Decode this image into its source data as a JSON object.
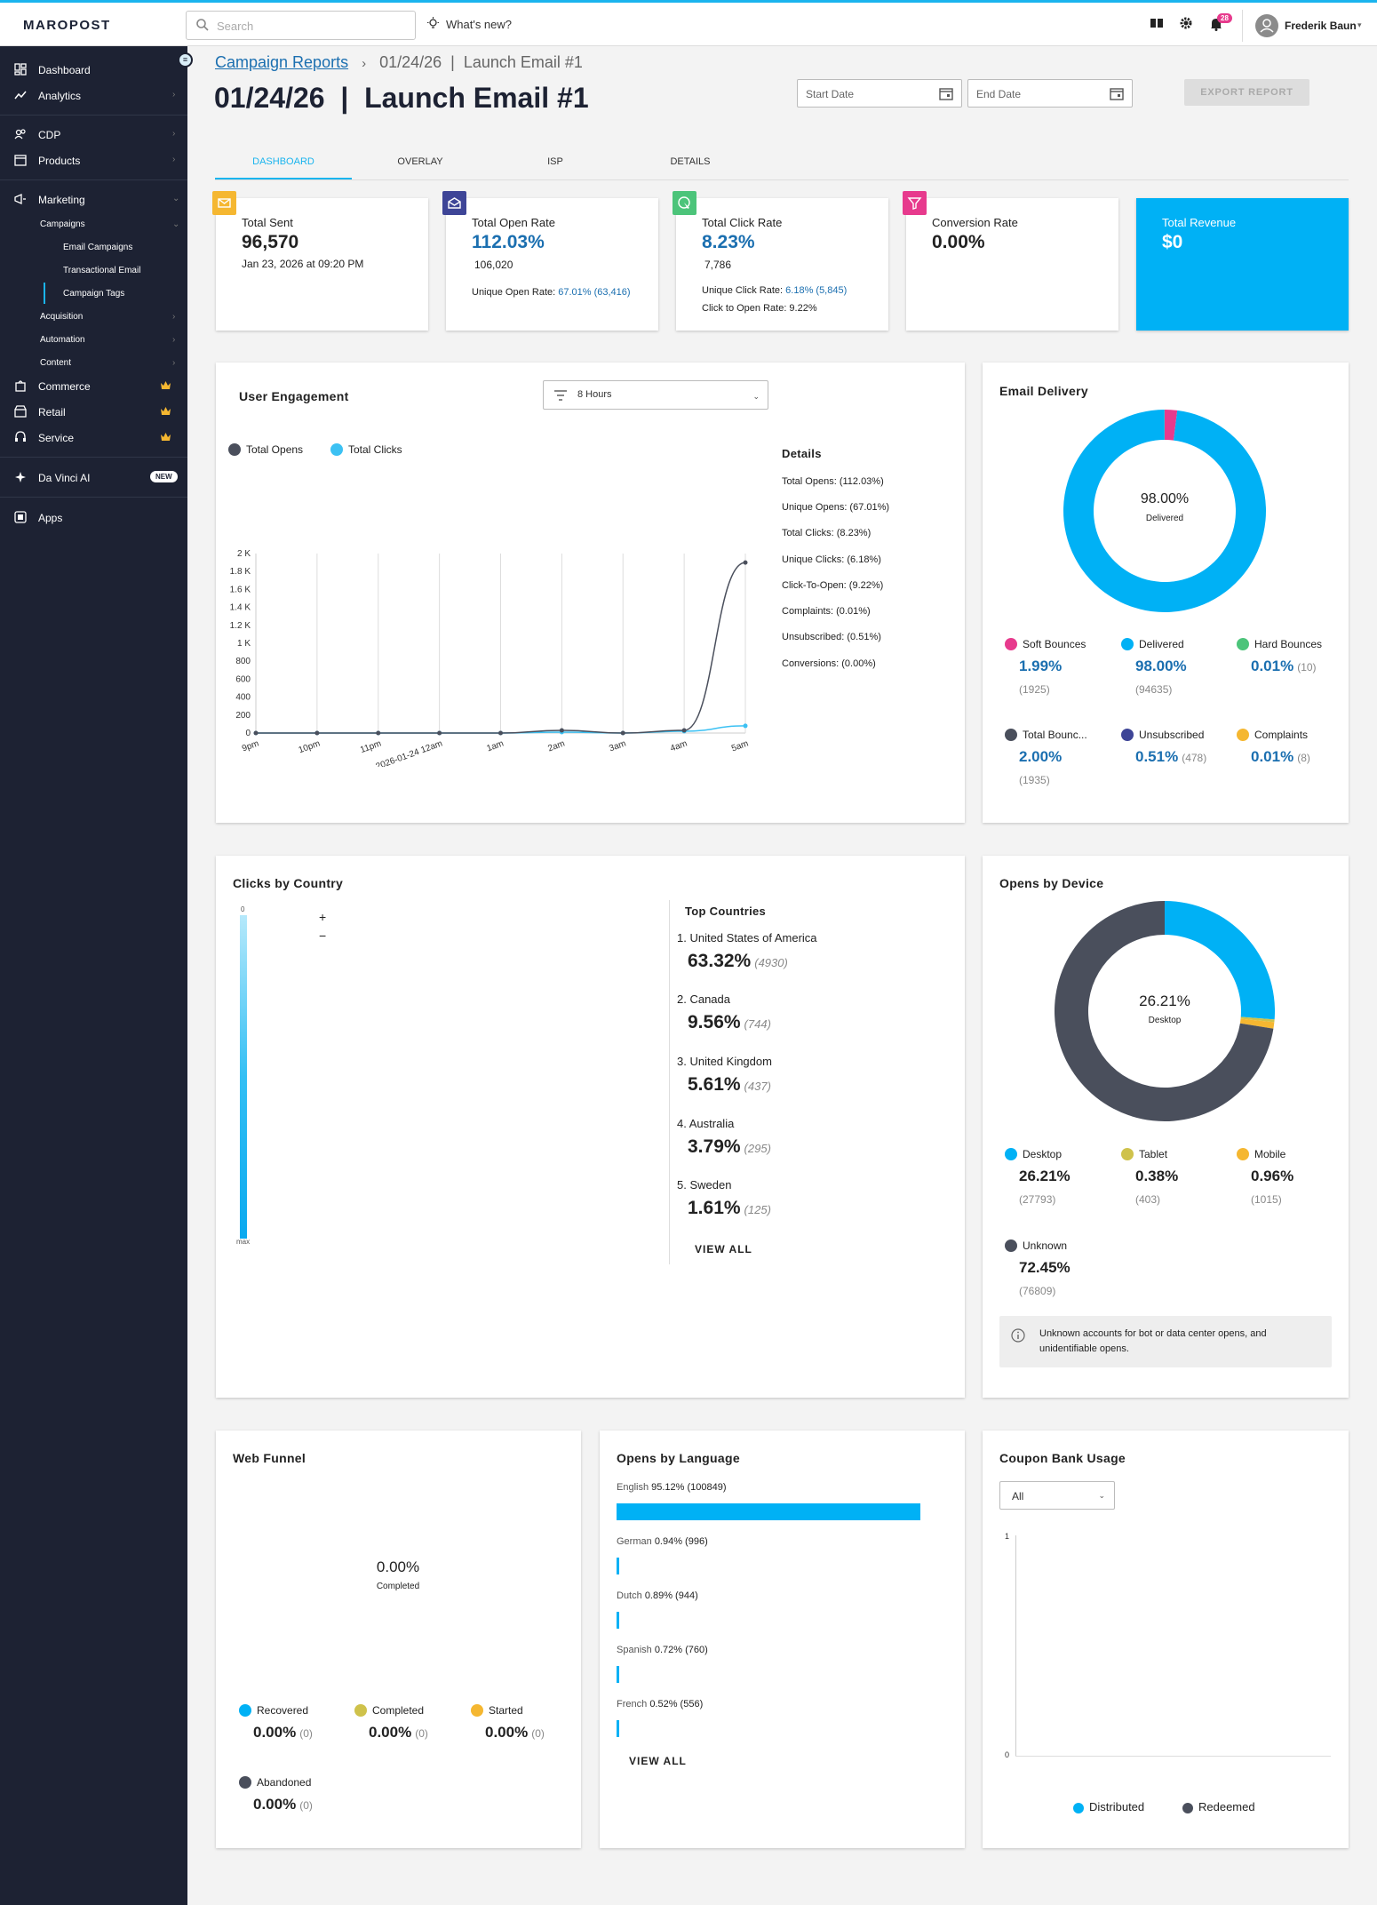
{
  "app": {
    "logo": "MAROPOST",
    "search_placeholder": "Search",
    "whats_new": "What's new?",
    "notif_count": "28",
    "user_name": "Frederik Baun"
  },
  "sidebar": {
    "toggle": "≡",
    "items": [
      {
        "label": "Dashboard"
      },
      {
        "label": "Analytics"
      },
      {
        "label": "CDP"
      },
      {
        "label": "Products"
      },
      {
        "label": "Marketing"
      },
      {
        "label": "Campaigns"
      },
      {
        "label": "Email Campaigns"
      },
      {
        "label": "Transactional Email"
      },
      {
        "label": "Campaign Tags"
      },
      {
        "label": "Acquisition"
      },
      {
        "label": "Automation"
      },
      {
        "label": "Content"
      },
      {
        "label": "Commerce"
      },
      {
        "label": "Retail"
      },
      {
        "label": "Service"
      },
      {
        "label": "Da Vinci AI"
      },
      {
        "label": "Apps"
      }
    ],
    "new_badge": "NEW"
  },
  "breadcrumb": {
    "root": "Campaign Reports",
    "sep": "›",
    "current": "01/24/26  |  Launch Email #1"
  },
  "page_title": "01/24/26  |  Launch Email #1",
  "dates": {
    "start_placeholder": "Start Date",
    "end_placeholder": "End Date"
  },
  "export_label": "EXPORT REPORT",
  "tabs": [
    {
      "label": "DASHBOARD"
    },
    {
      "label": "OVERLAY"
    },
    {
      "label": "ISP"
    },
    {
      "label": "DETAILS"
    }
  ],
  "kpis": {
    "sent": {
      "label": "Total Sent",
      "value": "96,570",
      "sub": "Jan 23, 2026 at 09:20 PM"
    },
    "open": {
      "label": "Total Open Rate",
      "value": "112.03%",
      "sub": "106,020",
      "note_label": "Unique Open Rate:",
      "note_value": "67.01% (63,416)"
    },
    "click": {
      "label": "Total Click Rate",
      "value": "8.23%",
      "sub": "7,786",
      "note_label": "Unique Click Rate:",
      "note_value": "6.18% (5,845)",
      "note2": "Click to Open Rate: 9.22%"
    },
    "conv": {
      "label": "Conversion Rate",
      "value": "0.00%"
    },
    "revenue": {
      "label": "Total Revenue",
      "value": "$0"
    }
  },
  "engagement": {
    "title": "User Engagement",
    "range": "8 Hours",
    "legend": [
      "Total Opens",
      "Total Clicks"
    ],
    "details_title": "Details",
    "details": [
      "Total Opens: (112.03%)",
      "Unique Opens: (67.01%)",
      "Total Clicks: (8.23%)",
      "Unique Clicks: (6.18%)",
      "Click-To-Open: (9.22%)",
      "Complaints: (0.01%)",
      "Unsubscribed: (0.51%)",
      "Conversions: (0.00%)"
    ]
  },
  "delivery": {
    "title": "Email Delivery",
    "center_value": "98.00%",
    "center_label": "Delivered",
    "stats": [
      {
        "label": "Soft Bounces",
        "value": "1.99%",
        "count": "(1925)",
        "color": "#e73a8d"
      },
      {
        "label": "Delivered",
        "value": "98.00%",
        "count": "(94635)",
        "color": "#00b1f5"
      },
      {
        "label": "Hard Bounces",
        "value": "0.01%",
        "count": "(10)",
        "color": "#4cc47a"
      },
      {
        "label": "Total Bounc...",
        "value": "2.00%",
        "count": "(1935)",
        "color": "#4a4f5c"
      },
      {
        "label": "Unsubscribed",
        "value": "0.51%",
        "count": "(478)",
        "color": "#3e4597"
      },
      {
        "label": "Complaints",
        "value": "0.01%",
        "count": "(8)",
        "color": "#f5b731"
      }
    ]
  },
  "country": {
    "title": "Clicks by Country",
    "scale_min": "0",
    "scale_max": "max",
    "zoom_in": "+",
    "zoom_out": "−",
    "top_title": "Top Countries",
    "top": [
      {
        "name": "1. United States of America",
        "pct": "63.32%",
        "count": "(4930)"
      },
      {
        "name": "2. Canada",
        "pct": "9.56%",
        "count": "(744)"
      },
      {
        "name": "3. United Kingdom",
        "pct": "5.61%",
        "count": "(437)"
      },
      {
        "name": "4. Australia",
        "pct": "3.79%",
        "count": "(295)"
      },
      {
        "name": "5. Sweden",
        "pct": "1.61%",
        "count": "(125)"
      }
    ],
    "view_all": "VIEW ALL"
  },
  "device": {
    "title": "Opens by Device",
    "center_value": "26.21%",
    "center_label": "Desktop",
    "stats": [
      {
        "label": "Desktop",
        "value": "26.21%",
        "count": "(27793)",
        "color": "#00b1f5"
      },
      {
        "label": "Tablet",
        "value": "0.38%",
        "count": "(403)",
        "color": "#cfc24b"
      },
      {
        "label": "Mobile",
        "value": "0.96%",
        "count": "(1015)",
        "color": "#f5b731"
      },
      {
        "label": "Unknown",
        "value": "72.45%",
        "count": "(76809)",
        "color": "#4a4f5c"
      }
    ],
    "info": "Unknown accounts for bot or data center opens, and unidentifiable opens."
  },
  "funnel": {
    "title": "Web Funnel",
    "center_value": "0.00%",
    "center_label": "Completed",
    "stats": [
      {
        "label": "Recovered",
        "value": "0.00%",
        "count": "(0)",
        "color": "#00b1f5"
      },
      {
        "label": "Completed",
        "value": "0.00%",
        "count": "(0)",
        "color": "#cfc24b"
      },
      {
        "label": "Started",
        "value": "0.00%",
        "count": "(0)",
        "color": "#f5b731"
      },
      {
        "label": "Abandoned",
        "value": "0.00%",
        "count": "(0)",
        "color": "#4a4f5c"
      }
    ]
  },
  "language": {
    "title": "Opens by Language",
    "items": [
      {
        "name": "English",
        "stat": "95.12% (100849)",
        "pct": 95.12
      },
      {
        "name": "German",
        "stat": "0.94% (996)",
        "pct": 0.94
      },
      {
        "name": "Dutch",
        "stat": "0.89% (944)",
        "pct": 0.89
      },
      {
        "name": "Spanish",
        "stat": "0.72% (760)",
        "pct": 0.72
      },
      {
        "name": "French",
        "stat": "0.52% (556)",
        "pct": 0.52
      }
    ],
    "view_all": "VIEW ALL"
  },
  "coupon": {
    "title": "Coupon Bank Usage",
    "filter": "All",
    "y_top": "1",
    "y_bottom": "0",
    "legend": [
      "Distributed",
      "Redeemed"
    ]
  },
  "colors": {
    "accent": "#1ab4ee",
    "brand_blue": "#1b6fb0",
    "sidebar": "#1d2233",
    "revenue": "#00b1f5"
  },
  "chart_data": [
    {
      "type": "line",
      "title": "User Engagement",
      "x": [
        "9pm",
        "10pm",
        "11pm",
        "2026-01-24 12am",
        "1am",
        "2am",
        "3am",
        "4am",
        "5am"
      ],
      "series": [
        {
          "name": "Total Opens",
          "values": [
            0,
            0,
            0,
            0,
            0,
            30,
            0,
            30,
            1900
          ]
        },
        {
          "name": "Total Clicks",
          "values": [
            0,
            0,
            0,
            0,
            0,
            10,
            0,
            20,
            80
          ]
        }
      ],
      "y_ticks": [
        "0",
        "200",
        "400",
        "600",
        "800",
        "1 K",
        "1.2 K",
        "1.4 K",
        "1.6 K",
        "1.8 K",
        "2 K"
      ],
      "ylim": [
        0,
        2000
      ]
    },
    {
      "type": "pie",
      "title": "Email Delivery",
      "labels": [
        "Delivered",
        "Soft Bounces",
        "Hard Bounces",
        "Complaints"
      ],
      "values": [
        98.0,
        1.99,
        0.01,
        0.01
      ]
    },
    {
      "type": "pie",
      "title": "Opens by Device",
      "labels": [
        "Desktop",
        "Tablet",
        "Mobile",
        "Unknown"
      ],
      "values": [
        26.21,
        0.38,
        0.96,
        72.45
      ]
    },
    {
      "type": "bar",
      "title": "Opens by Language",
      "categories": [
        "English",
        "German",
        "Dutch",
        "Spanish",
        "French"
      ],
      "values": [
        95.12,
        0.94,
        0.89,
        0.72,
        0.52
      ]
    }
  ]
}
